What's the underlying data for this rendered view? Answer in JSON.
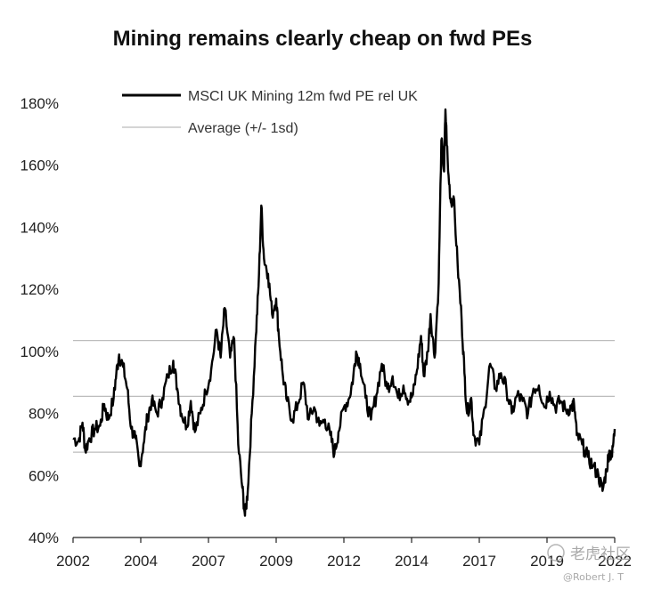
{
  "chart_data": {
    "type": "line",
    "title": "Mining remains clearly cheap on fwd PEs",
    "xlabel": "",
    "ylabel": "",
    "x_ticks": [
      "2002",
      "2004",
      "2007",
      "2009",
      "2012",
      "2014",
      "2017",
      "2019",
      "2022"
    ],
    "y_ticks": [
      "40%",
      "60%",
      "80%",
      "100%",
      "120%",
      "140%",
      "160%",
      "180%"
    ],
    "xlim": [
      2002,
      2022
    ],
    "ylim": [
      40,
      180
    ],
    "legend": {
      "placement": "top",
      "entries": [
        "MSCI UK Mining 12m fwd PE rel UK",
        "Average (+/- 1sd)"
      ]
    },
    "reference_lines": [
      {
        "name": "average",
        "value": 85.5
      },
      {
        "name": "plus-1sd",
        "value": 103.5
      },
      {
        "name": "minus-1sd",
        "value": 67.5
      }
    ],
    "series": [
      {
        "name": "MSCI UK Mining 12m fwd PE rel UK",
        "color": "#000000",
        "points": [
          [
            2002.0,
            72
          ],
          [
            2002.2,
            71
          ],
          [
            2002.35,
            77
          ],
          [
            2002.45,
            68
          ],
          [
            2002.6,
            72
          ],
          [
            2002.8,
            75
          ],
          [
            2003.0,
            76
          ],
          [
            2003.15,
            83
          ],
          [
            2003.3,
            78
          ],
          [
            2003.5,
            85
          ],
          [
            2003.6,
            93
          ],
          [
            2003.7,
            99
          ],
          [
            2003.85,
            95
          ],
          [
            2004.0,
            88
          ],
          [
            2004.15,
            75
          ],
          [
            2004.3,
            72
          ],
          [
            2004.45,
            63
          ],
          [
            2004.6,
            70
          ],
          [
            2004.75,
            79
          ],
          [
            2004.9,
            84
          ],
          [
            2005.1,
            80
          ],
          [
            2005.3,
            85
          ],
          [
            2005.5,
            92
          ],
          [
            2005.7,
            97
          ],
          [
            2005.85,
            88
          ],
          [
            2006.0,
            80
          ],
          [
            2006.2,
            76
          ],
          [
            2006.35,
            84
          ],
          [
            2006.5,
            74
          ],
          [
            2006.7,
            80
          ],
          [
            2006.9,
            87
          ],
          [
            2007.1,
            94
          ],
          [
            2007.3,
            107
          ],
          [
            2007.45,
            98
          ],
          [
            2007.6,
            114
          ],
          [
            2007.8,
            98
          ],
          [
            2007.95,
            104
          ],
          [
            2008.1,
            70
          ],
          [
            2008.25,
            56
          ],
          [
            2008.35,
            47
          ],
          [
            2008.45,
            55
          ],
          [
            2008.6,
            80
          ],
          [
            2008.75,
            105
          ],
          [
            2008.85,
            121
          ],
          [
            2008.95,
            147
          ],
          [
            2009.05,
            130
          ],
          [
            2009.2,
            125
          ],
          [
            2009.35,
            112
          ],
          [
            2009.5,
            117
          ],
          [
            2009.6,
            105
          ],
          [
            2009.75,
            92
          ],
          [
            2009.9,
            84
          ],
          [
            2010.1,
            78
          ],
          [
            2010.3,
            83
          ],
          [
            2010.5,
            90
          ],
          [
            2010.7,
            78
          ],
          [
            2010.9,
            82
          ],
          [
            2011.1,
            76
          ],
          [
            2011.3,
            78
          ],
          [
            2011.5,
            73
          ],
          [
            2011.65,
            67
          ],
          [
            2011.8,
            74
          ],
          [
            2012.0,
            82
          ],
          [
            2012.2,
            85
          ],
          [
            2012.35,
            92
          ],
          [
            2012.45,
            100
          ],
          [
            2012.6,
            96
          ],
          [
            2012.8,
            85
          ],
          [
            2013.0,
            78
          ],
          [
            2013.2,
            86
          ],
          [
            2013.4,
            96
          ],
          [
            2013.6,
            88
          ],
          [
            2013.8,
            92
          ],
          [
            2014.0,
            85
          ],
          [
            2014.2,
            89
          ],
          [
            2014.4,
            84
          ],
          [
            2014.55,
            86
          ],
          [
            2014.7,
            94
          ],
          [
            2014.85,
            105
          ],
          [
            2014.95,
            92
          ],
          [
            2015.1,
            100
          ],
          [
            2015.2,
            112
          ],
          [
            2015.35,
            98
          ],
          [
            2015.5,
            122
          ],
          [
            2015.6,
            168
          ],
          [
            2015.7,
            158
          ],
          [
            2015.75,
            178
          ],
          [
            2015.85,
            158
          ],
          [
            2015.95,
            148
          ],
          [
            2016.05,
            150
          ],
          [
            2016.2,
            128
          ],
          [
            2016.35,
            110
          ],
          [
            2016.45,
            93
          ],
          [
            2016.55,
            80
          ],
          [
            2016.7,
            85
          ],
          [
            2016.8,
            73
          ],
          [
            2017.0,
            70
          ],
          [
            2017.2,
            82
          ],
          [
            2017.4,
            96
          ],
          [
            2017.6,
            88
          ],
          [
            2017.8,
            93
          ],
          [
            2018.0,
            88
          ],
          [
            2018.2,
            80
          ],
          [
            2018.4,
            86
          ],
          [
            2018.6,
            84
          ],
          [
            2018.8,
            80
          ],
          [
            2019.0,
            88
          ],
          [
            2019.2,
            89
          ],
          [
            2019.4,
            82
          ],
          [
            2019.6,
            87
          ],
          [
            2019.8,
            82
          ],
          [
            2020.0,
            84
          ],
          [
            2020.2,
            81
          ],
          [
            2020.4,
            82
          ],
          [
            2020.5,
            83
          ],
          [
            2020.6,
            73
          ],
          [
            2020.8,
            70
          ],
          [
            2021.0,
            66
          ],
          [
            2021.2,
            63
          ],
          [
            2021.4,
            60
          ],
          [
            2021.55,
            55
          ],
          [
            2021.7,
            62
          ],
          [
            2021.8,
            68
          ],
          [
            2021.9,
            66
          ],
          [
            2022.0,
            75
          ]
        ]
      }
    ]
  },
  "watermark": {
    "user": "@Robert J. T",
    "brand": "老虎社区"
  }
}
